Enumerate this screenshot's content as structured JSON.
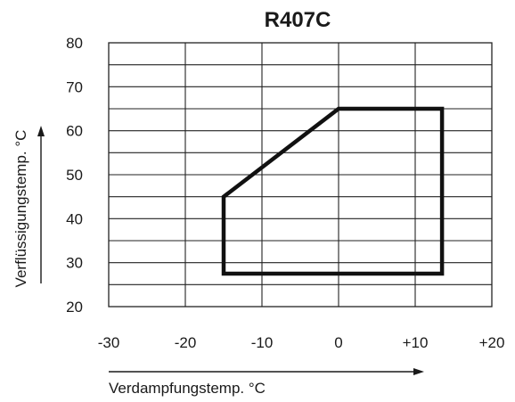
{
  "chart_data": {
    "type": "line",
    "title": "R407C",
    "xlabel": "Verdampfungstemp. °C",
    "ylabel": "Verflüssigungstemp. °C",
    "xlim": [
      -30,
      20
    ],
    "ylim": [
      20,
      80
    ],
    "x_major_ticks": [
      -30,
      -20,
      -10,
      0,
      10,
      20
    ],
    "x_tick_labels": [
      "-30",
      "-20",
      "-10",
      "0",
      "+10",
      "+20"
    ],
    "x_minor_step": 10,
    "y_major_ticks": [
      20,
      30,
      40,
      50,
      60,
      70,
      80
    ],
    "y_tick_labels": [
      "20",
      "30",
      "40",
      "50",
      "60",
      "70",
      "80"
    ],
    "y_minor_step": 5,
    "grid": true,
    "legend": "none",
    "series": [
      {
        "closed": true,
        "x": [
          -15,
          -15,
          0,
          13.5,
          13.5,
          -15
        ],
        "y": [
          27.5,
          45,
          65,
          65,
          27.5,
          27.5
        ]
      }
    ],
    "colors": {
      "line": "#111111",
      "grid": "#222222",
      "text": "#1a1a1a"
    }
  }
}
